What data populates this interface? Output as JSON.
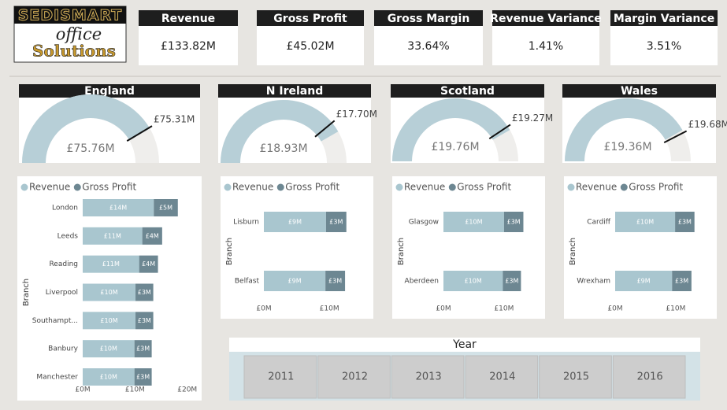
{
  "logo": {
    "brand": "SEDISMART",
    "line1": "office",
    "line2": "Solutions"
  },
  "kpis": [
    {
      "title": "Revenue",
      "value": "£133.82M"
    },
    {
      "title": "Gross Profit",
      "value": "£45.02M"
    },
    {
      "title": "Gross Margin",
      "value": "33.64%"
    },
    {
      "title": "Revenue Variance",
      "value": "1.41%"
    },
    {
      "title": "Margin Variance",
      "value": "3.51%"
    }
  ],
  "chart_data": [
    {
      "type": "gauge",
      "title": "England",
      "values": [
        75.76
      ],
      "value_labels": [
        "£75.76M"
      ],
      "target": 75.31,
      "target_label": "£75.31M",
      "ylim": [
        0,
        91
      ],
      "color": "#b7cfd7",
      "track_color": "#efeeec"
    },
    {
      "type": "gauge",
      "title": "N Ireland",
      "values": [
        18.93
      ],
      "value_labels": [
        "£18.93M"
      ],
      "target": 17.7,
      "target_label": "£17.70M",
      "ylim": [
        0,
        22.7
      ],
      "color": "#b7cfd7",
      "track_color": "#efeeec"
    },
    {
      "type": "gauge",
      "title": "Scotland",
      "values": [
        19.76
      ],
      "value_labels": [
        "£19.76M"
      ],
      "target": 19.27,
      "target_label": "£19.27M",
      "ylim": [
        0,
        23.7
      ],
      "color": "#b7cfd7",
      "track_color": "#efeeec"
    },
    {
      "type": "gauge",
      "title": "Wales",
      "values": [
        19.36
      ],
      "value_labels": [
        "£19.36M"
      ],
      "target": 19.68,
      "target_label": "£19.68M",
      "ylim": [
        0,
        23.2
      ],
      "color": "#b7cfd7",
      "track_color": "#efeeec"
    },
    {
      "type": "hbar_stacked",
      "y_label": "Branch",
      "categories": [
        "London",
        "Leeds",
        "Reading",
        "Liverpool",
        "Southampt...",
        "Banbury",
        "Manchester"
      ],
      "series": [
        {
          "name": "Revenue",
          "color": "#a9c6cf",
          "values": [
            13.6,
            11.4,
            10.8,
            10.1,
            10.1,
            9.9,
            9.9
          ],
          "value_labels": [
            "£14M",
            "£11M",
            "£11M",
            "£10M",
            "£10M",
            "£10M",
            "£10M"
          ]
        },
        {
          "name": "Gross Profit",
          "color": "#6d8792",
          "values": [
            4.6,
            3.8,
            3.6,
            3.4,
            3.4,
            3.3,
            3.3
          ],
          "value_labels": [
            "£5M",
            "£4M",
            "£4M",
            "£3M",
            "£3M",
            "£3M",
            "£3M"
          ]
        }
      ],
      "xlim": [
        0,
        22
      ],
      "xticks": [
        {
          "value": 0,
          "label": "£0M"
        },
        {
          "value": 10,
          "label": "£10M"
        },
        {
          "value": 20,
          "label": "£20M"
        }
      ]
    },
    {
      "type": "hbar_stacked",
      "y_label": "Branch",
      "categories": [
        "Lisburn",
        "Belfast"
      ],
      "series": [
        {
          "name": "Revenue",
          "color": "#a9c6cf",
          "values": [
            9.5,
            9.4
          ],
          "value_labels": [
            "£9M",
            "£9M"
          ]
        },
        {
          "name": "Gross Profit",
          "color": "#6d8792",
          "values": [
            3.1,
            3.0
          ],
          "value_labels": [
            "£3M",
            "£3M"
          ]
        }
      ],
      "xlim": [
        0,
        16
      ],
      "xticks": [
        {
          "value": 0,
          "label": "£0M"
        },
        {
          "value": 10,
          "label": "£10M"
        }
      ]
    },
    {
      "type": "hbar_stacked",
      "y_label": "Branch",
      "categories": [
        "Glasgow",
        "Aberdeen"
      ],
      "series": [
        {
          "name": "Revenue",
          "color": "#a9c6cf",
          "values": [
            10.0,
            9.8
          ],
          "value_labels": [
            "£10M",
            "£10M"
          ]
        },
        {
          "name": "Gross Profit",
          "color": "#6d8792",
          "values": [
            3.2,
            3.0
          ],
          "value_labels": [
            "£3M",
            "£3M"
          ]
        }
      ],
      "xlim": [
        0,
        16
      ],
      "xticks": [
        {
          "value": 0,
          "label": "£0M"
        },
        {
          "value": 10,
          "label": "£10M"
        }
      ]
    },
    {
      "type": "hbar_stacked",
      "y_label": "Branch",
      "categories": [
        "Cardiff",
        "Wrexham"
      ],
      "series": [
        {
          "name": "Revenue",
          "color": "#a9c6cf",
          "values": [
            9.9,
            9.4
          ],
          "value_labels": [
            "£10M",
            "£9M"
          ]
        },
        {
          "name": "Gross Profit",
          "color": "#6d8792",
          "values": [
            3.2,
            3.2
          ],
          "value_labels": [
            "£3M",
            "£3M"
          ]
        }
      ],
      "xlim": [
        0,
        16
      ],
      "xticks": [
        {
          "value": 0,
          "label": "£0M"
        },
        {
          "value": 10,
          "label": "£10M"
        }
      ]
    }
  ],
  "slicer": {
    "title": "Year",
    "items": [
      "2011",
      "2012",
      "2013",
      "2014",
      "2015",
      "2016"
    ]
  }
}
